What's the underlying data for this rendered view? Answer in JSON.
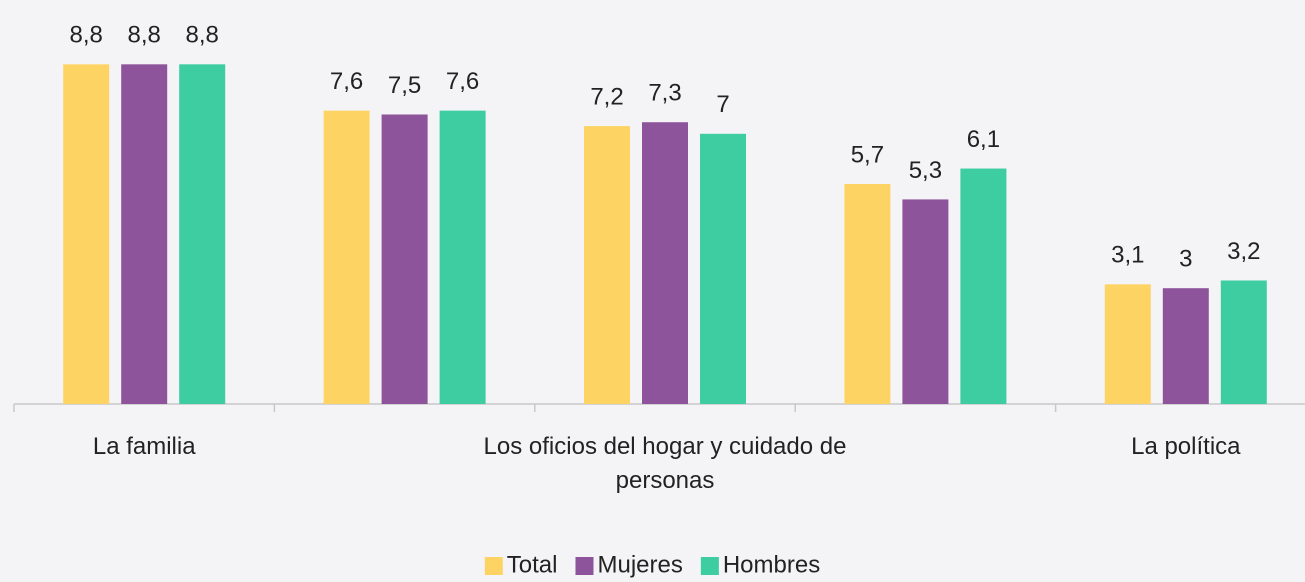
{
  "chart_data": {
    "type": "bar",
    "categories": [
      "La familia",
      null,
      "Los oficios del hogar y cuidado de personas",
      null,
      "La política"
    ],
    "series": [
      {
        "name": "Total",
        "color": "#fdd464",
        "values": [
          8.8,
          7.6,
          7.2,
          5.7,
          3.1
        ],
        "value_labels": [
          "8,8",
          "7,6",
          "7,2",
          "5,7",
          "3,1"
        ]
      },
      {
        "name": "Mujeres",
        "color": "#8d539b",
        "values": [
          8.8,
          7.5,
          7.3,
          5.3,
          3
        ],
        "value_labels": [
          "8,8",
          "7,5",
          "7,3",
          "5,3",
          "3"
        ]
      },
      {
        "name": "Hombres",
        "color": "#3ecda1",
        "values": [
          8.8,
          7.6,
          7,
          6.1,
          3.2
        ],
        "value_labels": [
          "8,8",
          "7,6",
          "7",
          "6,1",
          "3,2"
        ]
      }
    ],
    "ylim": [
      0,
      10
    ],
    "legend": "bottom"
  }
}
